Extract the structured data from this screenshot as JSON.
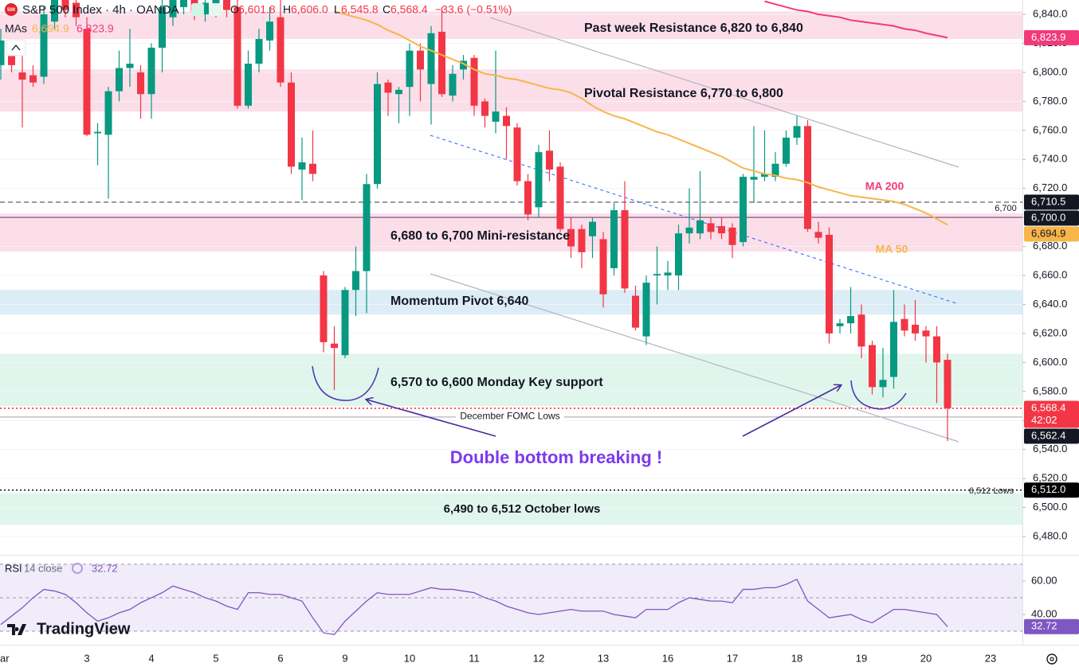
{
  "header": {
    "symbol": "S&P 500 Index · 4h · OANDA",
    "o_label": "O",
    "o": "6,601.8",
    "h_label": "H",
    "h": "6,606.0",
    "l_label": "L",
    "l": "6,545.8",
    "c_label": "C",
    "c": "6,568.4",
    "change": "−33.6 (−0.51%)",
    "mas_label": "MAs",
    "logo_badge": "500"
  },
  "annotation": "Double bottom breaking !",
  "brand": "TradingView",
  "chart_data": [
    {
      "type": "candlestick",
      "up_color": "#089981",
      "down_color": "#f23645",
      "ylim": [
        6467.4,
        6849.9
      ],
      "yticks": [
        {
          "value": 6840,
          "label": "6,840.0"
        },
        {
          "value": 6820,
          "label": "6,820.0"
        },
        {
          "value": 6800,
          "label": "6,800.0"
        },
        {
          "value": 6780,
          "label": "6,780.0"
        },
        {
          "value": 6760,
          "label": "6,760.0"
        },
        {
          "value": 6740,
          "label": "6,740.0"
        },
        {
          "value": 6720,
          "label": "6,720.0"
        },
        {
          "value": 6700,
          "label": "6,700.0"
        },
        {
          "value": 6680,
          "label": "6,680.0"
        },
        {
          "value": 6660,
          "label": "6,660.0"
        },
        {
          "value": 6640,
          "label": "6,640.0"
        },
        {
          "value": 6620,
          "label": "6,620.0"
        },
        {
          "value": 6600,
          "label": "6,600.0"
        },
        {
          "value": 6580,
          "label": "6,580.0"
        },
        {
          "value": 6560,
          "label": "6,560.0"
        },
        {
          "value": 6540,
          "label": "6,540.0"
        },
        {
          "value": 6520,
          "label": "6,520.0"
        },
        {
          "value": 6500,
          "label": "6,500.0"
        },
        {
          "value": 6480,
          "label": "6,480.0"
        }
      ],
      "grid": true,
      "categories": [
        "ar",
        null,
        null,
        null,
        null,
        null,
        null,
        null,
        "3",
        null,
        null,
        null,
        null,
        null,
        "4",
        null,
        null,
        null,
        null,
        null,
        "5",
        null,
        null,
        null,
        null,
        null,
        "6",
        null,
        null,
        null,
        null,
        null,
        "9",
        null,
        null,
        null,
        null,
        null,
        "10",
        null,
        null,
        null,
        null,
        null,
        "11",
        null,
        null,
        null,
        null,
        null,
        "12",
        null,
        null,
        null,
        null,
        null,
        "13",
        null,
        null,
        null,
        null,
        null,
        "16",
        null,
        null,
        null,
        null,
        null,
        "17",
        null,
        null,
        null,
        null,
        null,
        "18",
        null,
        null,
        null,
        null,
        null,
        "19",
        null,
        null,
        null,
        null,
        null,
        "20",
        null,
        null,
        null,
        null,
        null,
        "23"
      ],
      "open": [
        6805,
        6812,
        6800,
        6798,
        6797,
        6835,
        6850,
        6848,
        6830,
        6758,
        6757,
        6787,
        6803,
        6800,
        6785,
        6817,
        6838,
        6845,
        6850,
        6840,
        6842,
        6850,
        6845,
        6777,
        6806,
        6822,
        6838,
        6793,
        6733,
        6737,
        6660,
        6613,
        6605,
        6650,
        6663,
        6723,
        6793,
        6785,
        6790,
        6815,
        6792,
        6828,
        6784,
        6802,
        6810,
        6780,
        6766,
        6770,
        6762,
        6725,
        6707,
        6746,
        6735,
        6692,
        6692,
        6687,
        6685,
        6665,
        6705,
        6646,
        6618,
        6660,
        6660,
        6660,
        6689,
        6689,
        6696,
        6694,
        6693,
        6683,
        6726,
        6728,
        6728,
        6737,
        6755,
        6763,
        6690,
        6688,
        6625,
        6627,
        6633,
        6612,
        6583,
        6590,
        6630,
        6626,
        6622,
        6618,
        6601.8,
        null,
        null,
        null,
        null
      ],
      "high": [
        6830,
        6818,
        6815,
        6805,
        6845,
        6852,
        6852,
        6852,
        6838,
        6765,
        6790,
        6815,
        6830,
        6805,
        6820,
        6850,
        6852,
        6852,
        6852,
        6852,
        6852,
        6852,
        6852,
        6815,
        6830,
        6845,
        6850,
        6800,
        6755,
        6760,
        6663,
        6625,
        6652,
        6680,
        6730,
        6800,
        6795,
        6790,
        6820,
        6820,
        6832,
        6845,
        6805,
        6812,
        6812,
        6782,
        6815,
        6776,
        6765,
        6730,
        6750,
        6760,
        6738,
        6700,
        6695,
        6700,
        6690,
        6710,
        6725,
        6653,
        6660,
        6680,
        6670,
        6695,
        6720,
        6732,
        6700,
        6700,
        6696,
        6730,
        6763,
        6760,
        6745,
        6760,
        6770,
        6767,
        6697,
        6693,
        6630,
        6652,
        6640,
        6615,
        6610,
        6650,
        6640,
        6643,
        6625,
        6625,
        6606,
        null,
        null,
        null,
        null
      ],
      "low": [
        6795,
        6800,
        6762,
        6790,
        6792,
        6830,
        6838,
        6832,
        6756,
        6736,
        6713,
        6780,
        6790,
        6768,
        6768,
        6800,
        6832,
        6840,
        6836,
        6835,
        6838,
        6838,
        6775,
        6775,
        6800,
        6815,
        6790,
        6730,
        6712,
        6725,
        6607,
        6581,
        6603,
        6632,
        6634,
        6720,
        6770,
        6765,
        6770,
        6780,
        6764,
        6783,
        6780,
        6795,
        6770,
        6762,
        6758,
        6740,
        6722,
        6698,
        6700,
        6725,
        6690,
        6672,
        6665,
        6672,
        6638,
        6660,
        6648,
        6622,
        6612,
        6640,
        6650,
        6650,
        6682,
        6685,
        6685,
        6685,
        6672,
        6680,
        6710,
        6725,
        6725,
        6735,
        6750,
        6690,
        6682,
        6613,
        6620,
        6620,
        6603,
        6578,
        6576,
        6582,
        6618,
        6615,
        6600,
        6572,
        6545.8,
        null,
        null,
        null,
        null
      ],
      "close": [
        6822,
        6805,
        6795,
        6793,
        6840,
        6850,
        6843,
        6838,
        6757,
        6759,
        6787,
        6803,
        6806,
        6785,
        6817,
        6845,
        6850,
        6850,
        6842,
        6848,
        6850,
        6843,
        6777,
        6806,
        6823,
        6835,
        6793,
        6735,
        6738,
        6730,
        6614,
        6610,
        6650,
        6663,
        6723,
        6792,
        6786,
        6788,
        6815,
        6802,
        6827,
        6785,
        6799,
        6808,
        6777,
        6770,
        6773,
        6763,
        6725,
        6702,
        6745,
        6733,
        6692,
        6680,
        6676,
        6697,
        6647,
        6705,
        6651,
        6624,
        6655,
        6661,
        6662,
        6689,
        6693,
        6698,
        6690,
        6689,
        6681,
        6728,
        6728,
        6730,
        6737,
        6755,
        6763,
        6692,
        6686,
        6620,
        6627,
        6632,
        6611,
        6583,
        6588,
        6628,
        6622,
        6620,
        6618,
        6600,
        6568.4,
        null,
        null,
        null,
        null
      ],
      "series": [
        {
          "name": "MA 50",
          "color": "#f7b54a",
          "tag": "6,694.9",
          "tag_text_color": "#131722",
          "values": [
            null,
            null,
            null,
            null,
            null,
            null,
            null,
            null,
            null,
            null,
            null,
            null,
            null,
            null,
            null,
            null,
            null,
            null,
            null,
            null,
            null,
            null,
            null,
            null,
            null,
            null,
            null,
            null,
            null,
            null,
            null,
            6842,
            6840,
            6838,
            6836,
            6833,
            6829,
            6826,
            6822,
            6818,
            6815,
            6812,
            6809,
            6806,
            6802,
            6799,
            6798,
            6796,
            6795,
            6793,
            6791,
            6789,
            6788,
            6786,
            6782,
            6777,
            6773,
            6770,
            6768,
            6765,
            6762,
            6759,
            6757,
            6754,
            6751,
            6748,
            6745,
            6742,
            6738,
            6734,
            6732,
            6730,
            6729,
            6727,
            6726,
            6724,
            6721,
            6719,
            6717,
            6715,
            6714,
            6713,
            6712,
            6711,
            6709,
            6706,
            6703,
            6699,
            6694.9,
            null,
            null,
            null,
            null
          ]
        },
        {
          "name": "MA 200",
          "color": "#f23a7a",
          "tag": "6,823.9",
          "tag_text_color": "#ffffff",
          "values": [
            null,
            null,
            null,
            null,
            null,
            null,
            null,
            null,
            null,
            null,
            null,
            null,
            null,
            null,
            null,
            null,
            null,
            null,
            null,
            null,
            null,
            null,
            null,
            null,
            null,
            null,
            null,
            null,
            null,
            null,
            null,
            null,
            null,
            null,
            null,
            null,
            null,
            null,
            null,
            null,
            null,
            null,
            null,
            null,
            null,
            null,
            null,
            null,
            null,
            null,
            null,
            null,
            null,
            null,
            null,
            null,
            null,
            null,
            null,
            null,
            null,
            null,
            null,
            null,
            null,
            null,
            null,
            null,
            null,
            null,
            null,
            6849,
            6847,
            6845,
            6843,
            6842,
            6840,
            6839,
            6838,
            6836,
            6835,
            6834,
            6833,
            6832,
            6830,
            6829,
            6827,
            6825.5,
            6823.9,
            null,
            null,
            null,
            null
          ]
        }
      ],
      "zones": [
        {
          "label": "Past week Resistance 6,820 to 6,840",
          "low": 6823,
          "high": 6842,
          "color": "#fcd8e5"
        },
        {
          "label": "Pivotal Resistance 6,770 to 6,800",
          "low": 6773,
          "high": 6802,
          "color": "#fcd8e5"
        },
        {
          "label": "6,680 to 6,700 Mini-resistance",
          "low": 6676.5,
          "high": 6702.8,
          "color": "#fcd8e5"
        },
        {
          "label": "Momentum Pivot  6,640",
          "low": 6633,
          "high": 6650,
          "color": "#d6eaf4"
        },
        {
          "label": "6,570 to 6,600 Monday Key support",
          "low": 6570,
          "high": 6606,
          "color": "#dbf5ea"
        },
        {
          "label": "6,490 to 6,512 October lows",
          "low": 6488,
          "high": 6510,
          "color": "#dbf5ea"
        }
      ],
      "lines": [
        {
          "value": 6710.5,
          "style": "dashed",
          "color": "#5d606b",
          "tag": "6,710.5",
          "tag_color": "#131722"
        },
        {
          "value": 6700,
          "style": "solid",
          "color": "#7a5a86",
          "label": "6,700",
          "tag": "6,700.0",
          "tag_color": "#131722"
        },
        {
          "value": 6568.4,
          "style": "dotted",
          "color": "#f23645",
          "tag": "6,568.4",
          "tag_sub": "42:02",
          "tag_color": "#f23645"
        },
        {
          "value": 6562.4,
          "style": "solid",
          "color": "#b2b5be",
          "label": "December FOMC Lows",
          "tag": "6,562.4",
          "tag_color": "#131722"
        },
        {
          "value": 6512,
          "style": "dotted",
          "color": "#131722",
          "label": "6,512 Lows",
          "tag": "6,512.0",
          "tag_color": "#000000"
        }
      ]
    },
    {
      "type": "line",
      "name": "RSI",
      "length": "14",
      "source": "close",
      "last": "32.72",
      "color": "#7e57c2",
      "ylim": [
        21.9,
        75.2
      ],
      "yticks": [
        {
          "value": 60,
          "label": "60.00"
        },
        {
          "value": 40,
          "label": "40.00"
        }
      ],
      "levels": [
        70,
        50,
        30
      ],
      "band": [
        30,
        70
      ],
      "values": [
        34,
        39,
        44,
        50,
        55,
        54,
        52,
        47,
        41,
        36,
        38,
        41,
        43,
        47,
        50,
        53,
        57,
        55,
        53,
        50,
        48,
        45,
        43,
        53,
        53,
        52,
        52,
        50,
        48,
        38,
        29,
        28,
        36,
        42,
        48,
        53,
        52,
        52,
        52,
        54,
        56,
        55,
        55,
        54,
        53,
        50,
        48,
        45,
        43,
        41,
        40,
        41,
        42,
        43,
        42,
        42,
        42,
        40,
        39,
        38,
        43,
        43,
        43,
        47,
        50,
        49,
        48,
        48,
        47,
        55,
        55,
        56,
        56,
        58,
        61,
        48,
        43,
        38,
        39,
        40,
        37,
        35,
        39,
        43,
        43,
        42,
        41,
        40,
        32.72,
        null,
        null,
        null,
        null
      ]
    }
  ]
}
